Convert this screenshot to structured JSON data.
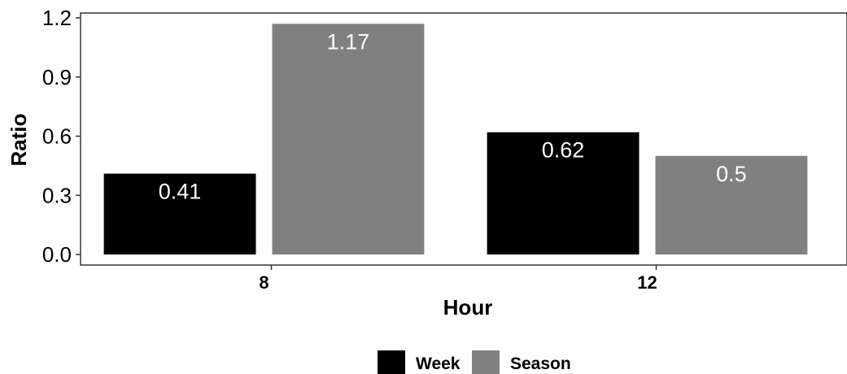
{
  "chart_data": {
    "type": "bar",
    "xlabel": "Hour",
    "ylabel": "Ratio",
    "categories": [
      "8",
      "12"
    ],
    "series": [
      {
        "name": "Week",
        "values": [
          0.41,
          0.62
        ],
        "labels": [
          "0.41",
          "0.62"
        ],
        "color": "#000000"
      },
      {
        "name": "Season",
        "values": [
          1.17,
          0.5
        ],
        "labels": [
          "1.17",
          "0.5"
        ],
        "color": "#808080"
      }
    ],
    "ylim": [
      0,
      1.2
    ],
    "yticks": [
      "0.0",
      "0.3",
      "0.6",
      "0.9",
      "1.2"
    ],
    "grid": false,
    "legend_position": "bottom"
  }
}
